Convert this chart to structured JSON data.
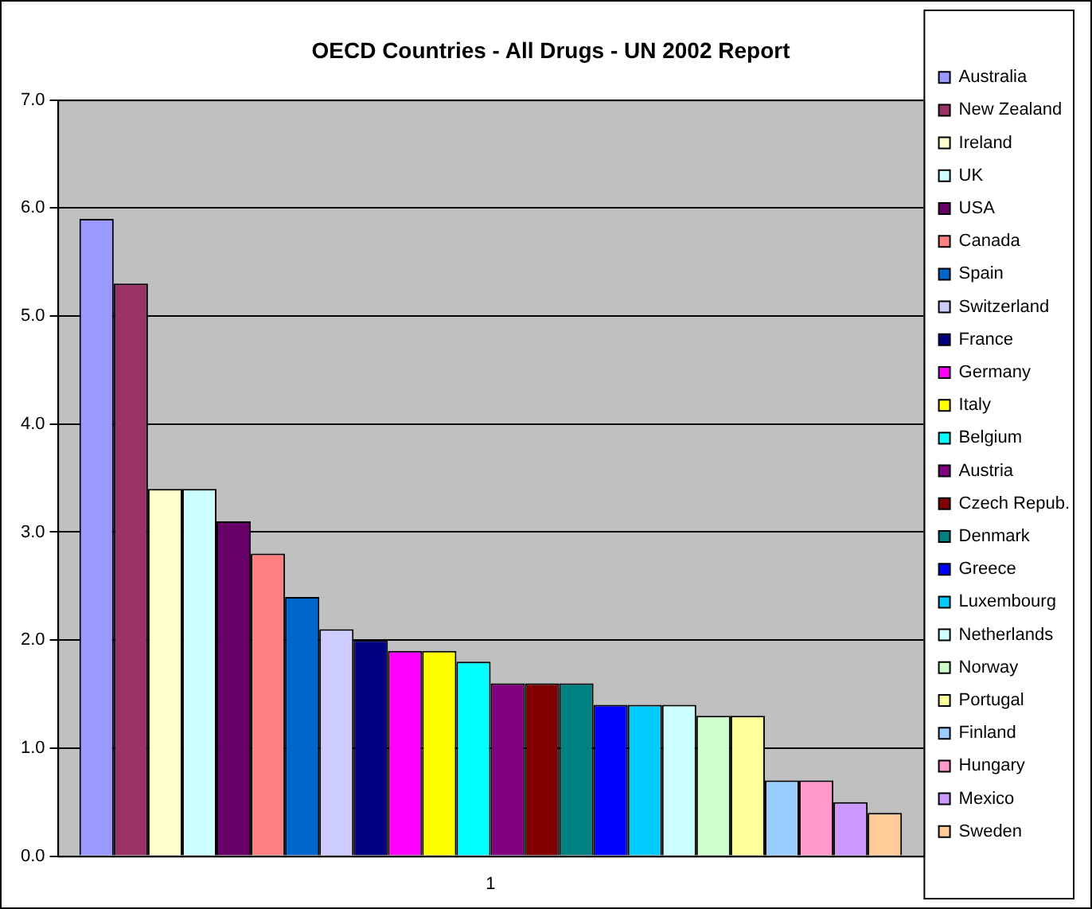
{
  "chart_data": {
    "type": "bar",
    "title": "OECD Countries - All Drugs - UN 2002 Report",
    "categories": [
      "1"
    ],
    "series": [
      {
        "name": "Australia",
        "color": "#9999ff",
        "values": [
          5.9
        ]
      },
      {
        "name": "New Zealand",
        "color": "#993366",
        "values": [
          5.3
        ]
      },
      {
        "name": "Ireland",
        "color": "#ffffcc",
        "values": [
          3.4
        ]
      },
      {
        "name": "UK",
        "color": "#ccffff",
        "values": [
          3.4
        ]
      },
      {
        "name": "USA",
        "color": "#660066",
        "values": [
          3.1
        ]
      },
      {
        "name": "Canada",
        "color": "#ff8080",
        "values": [
          2.8
        ]
      },
      {
        "name": "Spain",
        "color": "#0066cc",
        "values": [
          2.4
        ]
      },
      {
        "name": "Switzerland",
        "color": "#ccccff",
        "values": [
          2.1
        ]
      },
      {
        "name": "France",
        "color": "#000080",
        "values": [
          2.0
        ]
      },
      {
        "name": "Germany",
        "color": "#ff00ff",
        "values": [
          1.9
        ]
      },
      {
        "name": "Italy",
        "color": "#ffff00",
        "values": [
          1.9
        ]
      },
      {
        "name": "Belgium",
        "color": "#00ffff",
        "values": [
          1.8
        ]
      },
      {
        "name": "Austria",
        "color": "#800080",
        "values": [
          1.6
        ]
      },
      {
        "name": "Czech Repub.",
        "color": "#800000",
        "values": [
          1.6
        ]
      },
      {
        "name": "Denmark",
        "color": "#008080",
        "values": [
          1.6
        ]
      },
      {
        "name": "Greece",
        "color": "#0000ff",
        "values": [
          1.4
        ]
      },
      {
        "name": "Luxembourg",
        "color": "#00ccff",
        "values": [
          1.4
        ]
      },
      {
        "name": "Netherlands",
        "color": "#ccffff",
        "values": [
          1.4
        ]
      },
      {
        "name": "Norway",
        "color": "#ccffcc",
        "values": [
          1.3
        ]
      },
      {
        "name": "Portugal",
        "color": "#ffff99",
        "values": [
          1.3
        ]
      },
      {
        "name": "Finland",
        "color": "#99ccff",
        "values": [
          0.7
        ]
      },
      {
        "name": "Hungary",
        "color": "#ff99cc",
        "values": [
          0.7
        ]
      },
      {
        "name": "Mexico",
        "color": "#cc99ff",
        "values": [
          0.5
        ]
      },
      {
        "name": "Sweden",
        "color": "#ffcc99",
        "values": [
          0.4
        ]
      }
    ],
    "ylim": [
      0,
      7
    ],
    "yticks": [
      {
        "value": 0,
        "label": "0.0"
      },
      {
        "value": 1,
        "label": "1.0"
      },
      {
        "value": 2,
        "label": "2.0"
      },
      {
        "value": 3,
        "label": "3.0"
      },
      {
        "value": 4,
        "label": "4.0"
      },
      {
        "value": 5,
        "label": "5.0"
      },
      {
        "value": 6,
        "label": "6.0"
      },
      {
        "value": 7,
        "label": "7.0"
      }
    ],
    "grid": "y",
    "legend": "right"
  }
}
